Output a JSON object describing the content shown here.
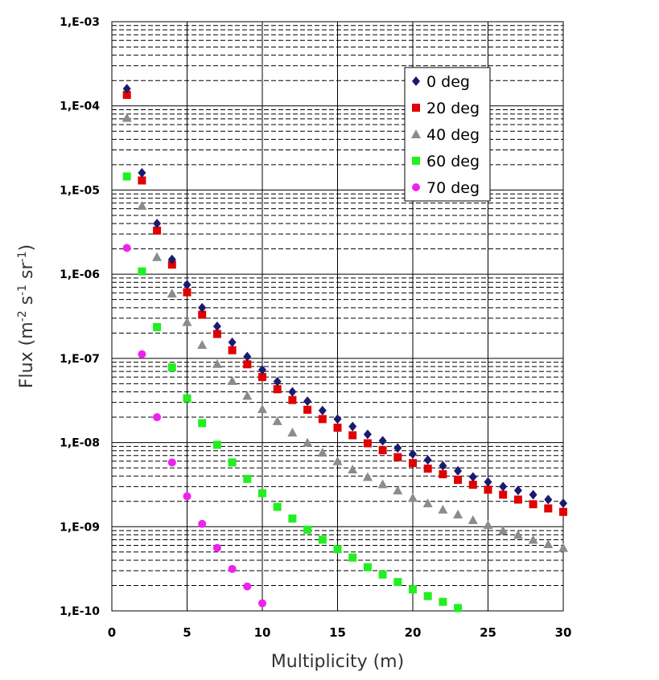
{
  "chart_data": {
    "type": "scatter",
    "title": "",
    "xlabel": "Multiplicity (m)",
    "ylabel": {
      "base": "Flux (m",
      "e1": "-2",
      "mid1": " s",
      "e2": "-1",
      "mid2": " sr",
      "e3": "-1",
      "end": ")"
    },
    "xlim": [
      0,
      30
    ],
    "ylim": [
      1e-10,
      0.001
    ],
    "yscale": "log",
    "x_ticks": [
      0,
      5,
      10,
      15,
      20,
      25,
      30
    ],
    "x_tick_labels": [
      "0",
      "5",
      "10",
      "15",
      "20",
      "25",
      "30"
    ],
    "y_ticks": [
      0.001,
      0.0001,
      1e-05,
      1e-06,
      1e-07,
      1e-08,
      1e-09,
      1e-10
    ],
    "y_tick_labels": [
      "1,E-03",
      "1,E-04",
      "1,E-05",
      "1,E-06",
      "1,E-07",
      "1,E-08",
      "1,E-09",
      "1,E-10"
    ],
    "grid": true,
    "legend_position": "top-right",
    "series": [
      {
        "name": "0 deg",
        "marker": "diamond",
        "color": "#1a1a6e",
        "x": [
          1,
          2,
          3,
          4,
          5,
          6,
          7,
          8,
          9,
          10,
          11,
          12,
          13,
          14,
          15,
          16,
          17,
          18,
          19,
          20,
          21,
          22,
          23,
          24,
          25,
          26,
          27,
          28,
          29,
          30
        ],
        "y": [
          0.00016,
          1.6e-05,
          4e-06,
          1.5e-06,
          7.5e-07,
          4e-07,
          2.4e-07,
          1.55e-07,
          1.05e-07,
          7.3e-08,
          5.3e-08,
          4e-08,
          3.1e-08,
          2.4e-08,
          1.9e-08,
          1.55e-08,
          1.25e-08,
          1.05e-08,
          8.6e-09,
          7.3e-09,
          6.2e-09,
          5.3e-09,
          4.6e-09,
          3.9e-09,
          3.4e-09,
          3e-09,
          2.7e-09,
          2.4e-09,
          2.1e-09,
          1.9e-09
        ]
      },
      {
        "name": "20 deg",
        "marker": "square",
        "color": "#e00000",
        "x": [
          1,
          2,
          3,
          4,
          5,
          6,
          7,
          8,
          9,
          10,
          11,
          12,
          13,
          14,
          15,
          16,
          17,
          18,
          19,
          20,
          21,
          22,
          23,
          24,
          25,
          26,
          27,
          28,
          29,
          30
        ],
        "y": [
          0.000135,
          1.3e-05,
          3.3e-06,
          1.3e-06,
          6.1e-07,
          3.3e-07,
          1.95e-07,
          1.25e-07,
          8.5e-08,
          6e-08,
          4.3e-08,
          3.2e-08,
          2.45e-08,
          1.9e-08,
          1.5e-08,
          1.22e-08,
          9.8e-09,
          8.1e-09,
          6.7e-09,
          5.7e-09,
          4.9e-09,
          4.2e-09,
          3.6e-09,
          3.15e-09,
          2.75e-09,
          2.4e-09,
          2.1e-09,
          1.85e-09,
          1.65e-09,
          1.5e-09
        ]
      },
      {
        "name": "40 deg",
        "marker": "triangle",
        "color": "#8c8c8c",
        "x": [
          1,
          2,
          3,
          4,
          5,
          6,
          7,
          8,
          9,
          10,
          11,
          12,
          13,
          14,
          15,
          16,
          17,
          18,
          19,
          20,
          21,
          22,
          23,
          24,
          25,
          26,
          27,
          28,
          29,
          30
        ],
        "y": [
          7.2e-05,
          6.5e-06,
          1.6e-06,
          5.9e-07,
          2.7e-07,
          1.45e-07,
          8.6e-08,
          5.4e-08,
          3.6e-08,
          2.5e-08,
          1.8e-08,
          1.32e-08,
          1e-08,
          7.6e-09,
          6e-09,
          4.8e-09,
          3.9e-09,
          3.2e-09,
          2.7e-09,
          2.2e-09,
          1.9e-09,
          1.6e-09,
          1.4e-09,
          1.2e-09,
          1.05e-09,
          9e-10,
          8e-10,
          7e-10,
          6.2e-10,
          5.6e-10
        ]
      },
      {
        "name": "60 deg",
        "marker": "square",
        "color": "#22ee22",
        "x": [
          1,
          2,
          3,
          4,
          5,
          6,
          7,
          8,
          9,
          10,
          11,
          12,
          13,
          14,
          15,
          16,
          17,
          18,
          19,
          20,
          21,
          22,
          23
        ],
        "y": [
          1.45e-05,
          1.08e-06,
          2.35e-07,
          7.8e-08,
          3.35e-08,
          1.7e-08,
          9.4e-09,
          5.8e-09,
          3.7e-09,
          2.5e-09,
          1.72e-09,
          1.25e-09,
          9.2e-10,
          7e-10,
          5.4e-10,
          4.3e-10,
          3.3e-10,
          2.7e-10,
          2.2e-10,
          1.8e-10,
          1.5e-10,
          1.28e-10,
          1.08e-10
        ]
      },
      {
        "name": "70 deg",
        "marker": "circle",
        "color": "#ee22ee",
        "x": [
          1,
          2,
          3,
          4,
          5,
          6,
          7,
          8,
          9,
          10
        ],
        "y": [
          2.05e-06,
          1.12e-07,
          2e-08,
          5.8e-09,
          2.3e-09,
          1.08e-09,
          5.6e-10,
          3.15e-10,
          1.95e-10,
          1.23e-10
        ]
      }
    ]
  }
}
